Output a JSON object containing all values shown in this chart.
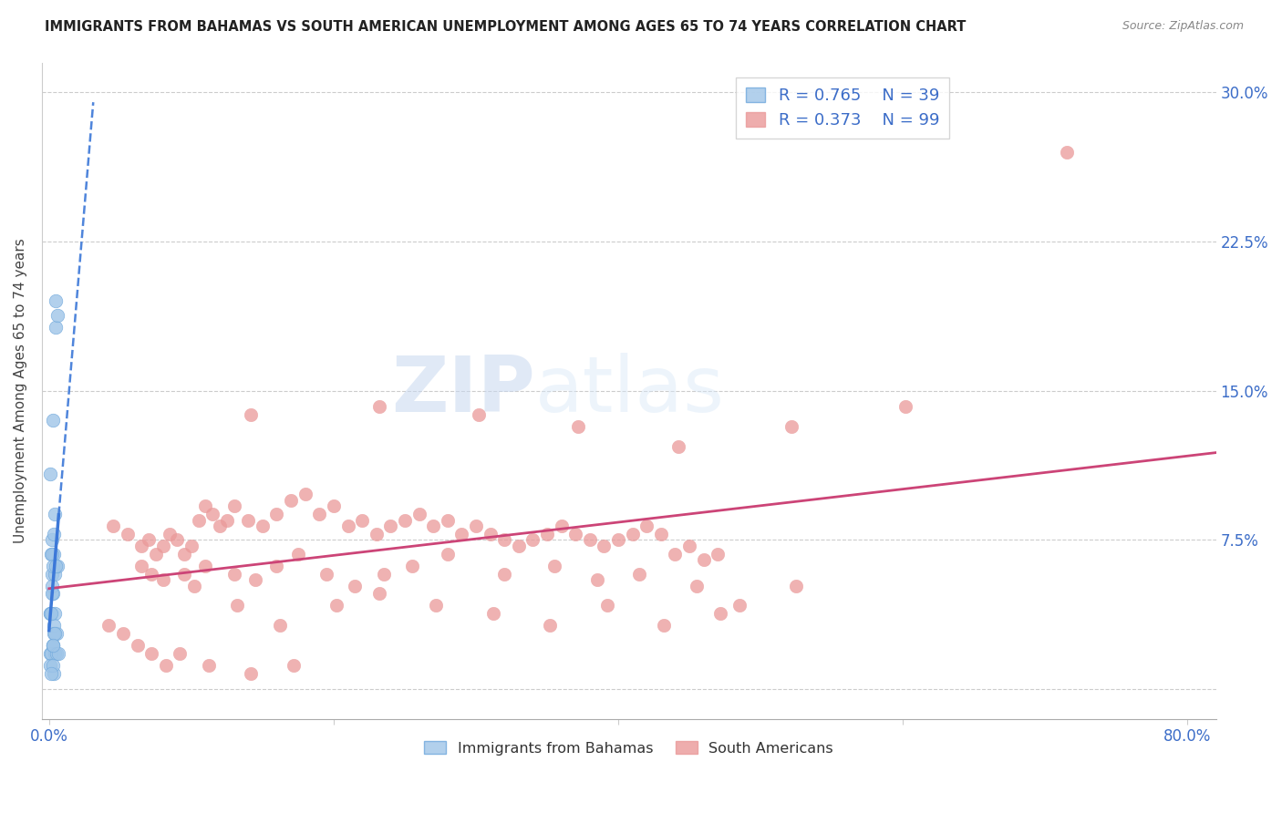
{
  "title": "IMMIGRANTS FROM BAHAMAS VS SOUTH AMERICAN UNEMPLOYMENT AMONG AGES 65 TO 74 YEARS CORRELATION CHART",
  "source": "Source: ZipAtlas.com",
  "ylabel": "Unemployment Among Ages 65 to 74 years",
  "y_ticks": [
    0.0,
    0.075,
    0.15,
    0.225,
    0.3
  ],
  "y_tick_labels_right": [
    "",
    "7.5%",
    "15.0%",
    "22.5%",
    "30.0%"
  ],
  "x_ticks": [
    0.0,
    0.2,
    0.4,
    0.6,
    0.8
  ],
  "x_tick_labels": [
    "0.0%",
    "",
    "",
    "",
    "80.0%"
  ],
  "xlim": [
    -0.005,
    0.82
  ],
  "ylim": [
    -0.015,
    0.315
  ],
  "bahamas_color": "#9fc5e8",
  "bahamas_edge_color": "#6fa8dc",
  "south_american_color": "#ea9999",
  "south_american_edge_color": "#e06666",
  "trend_bahamas_color": "#3c78d8",
  "trend_south_color": "#cc4477",
  "legend_R_bahamas": "R = 0.765",
  "legend_N_bahamas": "N = 39",
  "legend_R_south": "R = 0.373",
  "legend_N_south": "N = 99",
  "watermark_zip": "ZIP",
  "watermark_atlas": "atlas",
  "bahamas_x": [
    0.0028,
    0.0045,
    0.0022,
    0.0012,
    0.0031,
    0.0048,
    0.0062,
    0.0008,
    0.0038,
    0.0019,
    0.0029,
    0.0011,
    0.0021,
    0.0032,
    0.0041,
    0.0018,
    0.001,
    0.0028,
    0.0039,
    0.0051,
    0.002,
    0.0009,
    0.0031,
    0.0042,
    0.0027,
    0.0058,
    0.0015,
    0.0035,
    0.0008,
    0.0025,
    0.0017,
    0.0047,
    0.0036,
    0.0055,
    0.0024,
    0.0068,
    0.0038,
    0.0014,
    0.0026
  ],
  "bahamas_y": [
    0.135,
    0.195,
    0.075,
    0.068,
    0.068,
    0.182,
    0.188,
    0.108,
    0.088,
    0.058,
    0.048,
    0.038,
    0.068,
    0.078,
    0.058,
    0.052,
    0.038,
    0.062,
    0.038,
    0.028,
    0.048,
    0.018,
    0.008,
    0.018,
    0.022,
    0.062,
    0.018,
    0.032,
    0.012,
    0.022,
    0.038,
    0.062,
    0.028,
    0.018,
    0.012,
    0.018,
    0.028,
    0.008,
    0.022
  ],
  "south_x": [
    0.045,
    0.055,
    0.065,
    0.07,
    0.075,
    0.08,
    0.085,
    0.09,
    0.095,
    0.1,
    0.105,
    0.11,
    0.115,
    0.12,
    0.125,
    0.13,
    0.14,
    0.15,
    0.16,
    0.17,
    0.18,
    0.19,
    0.2,
    0.21,
    0.22,
    0.23,
    0.24,
    0.25,
    0.26,
    0.27,
    0.28,
    0.29,
    0.3,
    0.31,
    0.32,
    0.33,
    0.34,
    0.35,
    0.36,
    0.37,
    0.38,
    0.39,
    0.4,
    0.41,
    0.42,
    0.43,
    0.44,
    0.45,
    0.46,
    0.47,
    0.065,
    0.08,
    0.095,
    0.11,
    0.13,
    0.145,
    0.16,
    0.175,
    0.195,
    0.215,
    0.235,
    0.255,
    0.28,
    0.32,
    0.355,
    0.385,
    0.415,
    0.455,
    0.485,
    0.525,
    0.072,
    0.102,
    0.132,
    0.162,
    0.202,
    0.232,
    0.272,
    0.312,
    0.352,
    0.392,
    0.432,
    0.472,
    0.042,
    0.052,
    0.062,
    0.072,
    0.082,
    0.092,
    0.112,
    0.142,
    0.172,
    0.715,
    0.142,
    0.232,
    0.302,
    0.372,
    0.442,
    0.522,
    0.602
  ],
  "south_y": [
    0.082,
    0.078,
    0.072,
    0.075,
    0.068,
    0.072,
    0.078,
    0.075,
    0.068,
    0.072,
    0.085,
    0.092,
    0.088,
    0.082,
    0.085,
    0.092,
    0.085,
    0.082,
    0.088,
    0.095,
    0.098,
    0.088,
    0.092,
    0.082,
    0.085,
    0.078,
    0.082,
    0.085,
    0.088,
    0.082,
    0.085,
    0.078,
    0.082,
    0.078,
    0.075,
    0.072,
    0.075,
    0.078,
    0.082,
    0.078,
    0.075,
    0.072,
    0.075,
    0.078,
    0.082,
    0.078,
    0.068,
    0.072,
    0.065,
    0.068,
    0.062,
    0.055,
    0.058,
    0.062,
    0.058,
    0.055,
    0.062,
    0.068,
    0.058,
    0.052,
    0.058,
    0.062,
    0.068,
    0.058,
    0.062,
    0.055,
    0.058,
    0.052,
    0.042,
    0.052,
    0.058,
    0.052,
    0.042,
    0.032,
    0.042,
    0.048,
    0.042,
    0.038,
    0.032,
    0.042,
    0.032,
    0.038,
    0.032,
    0.028,
    0.022,
    0.018,
    0.012,
    0.018,
    0.012,
    0.008,
    0.012,
    0.27,
    0.138,
    0.142,
    0.138,
    0.132,
    0.122,
    0.132,
    0.142
  ]
}
